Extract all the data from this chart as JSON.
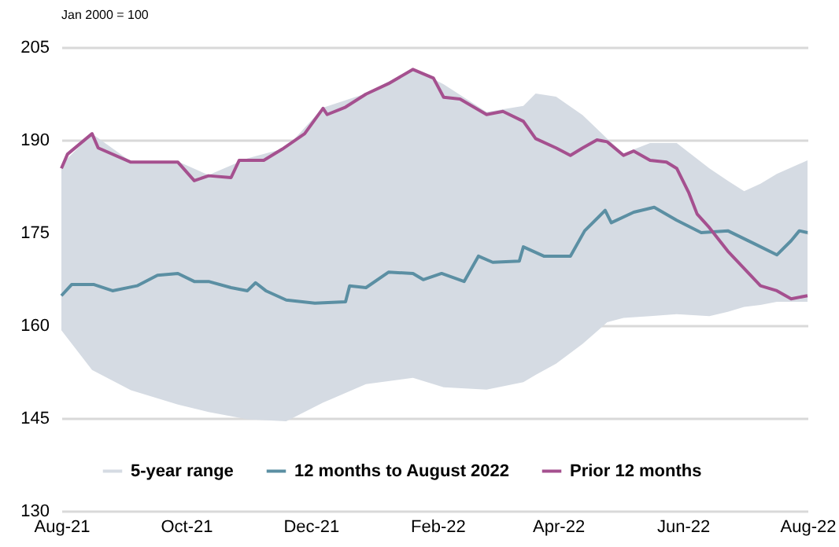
{
  "chart_data": {
    "type": "line",
    "annotations": [
      "Jan 2000 = 100"
    ],
    "xlim": [
      "2021-08-01",
      "2022-08-01"
    ],
    "xticks": [
      {
        "value": "2021-08-01",
        "label": "Aug-21"
      },
      {
        "value": "2021-10-01",
        "label": "Oct-21"
      },
      {
        "value": "2021-12-01",
        "label": "Dec-21"
      },
      {
        "value": "2022-02-01",
        "label": "Feb-22"
      },
      {
        "value": "2022-04-01",
        "label": "Apr-22"
      },
      {
        "value": "2022-06-01",
        "label": "Jun-22"
      },
      {
        "value": "2022-08-01",
        "label": "Aug-22"
      }
    ],
    "ylim": [
      130,
      205
    ],
    "yticks": [
      130,
      145,
      160,
      175,
      190,
      205
    ],
    "grid": "y",
    "legend": "bottom",
    "line_style": "solid",
    "series": [
      {
        "name": "5-year range",
        "type": "area",
        "color": "#d5dbe3",
        "x": [
          "2021-08-01",
          "2021-08-16",
          "2021-09-04",
          "2021-09-27",
          "2021-10-12",
          "2021-10-31",
          "2021-11-19",
          "2021-12-07",
          "2021-12-28",
          "2022-01-20",
          "2022-02-04",
          "2022-02-25",
          "2022-03-15",
          "2022-03-21",
          "2022-03-31",
          "2022-04-13",
          "2022-04-25",
          "2022-05-03",
          "2022-05-16",
          "2022-05-29",
          "2022-06-14",
          "2022-06-23",
          "2022-07-01",
          "2022-07-09",
          "2022-07-17",
          "2022-08-01"
        ],
        "values": [
          null,
          null,
          null,
          null,
          null,
          null,
          null,
          null,
          null,
          null,
          null,
          null,
          null,
          null,
          null,
          null,
          null,
          null,
          null,
          null,
          null,
          null,
          null,
          null,
          null,
          null
        ],
        "upper": [
          186,
          191,
          186.5,
          186.5,
          184.3,
          187,
          188.7,
          195.2,
          197.5,
          201.5,
          199,
          194.5,
          195.5,
          197.5,
          197,
          194,
          190.2,
          187.8,
          189.5,
          189.5,
          185.4,
          183.4,
          181.7,
          182.9,
          184.5,
          186.7
        ],
        "lower": [
          159.2,
          152.8,
          149.5,
          147.2,
          146,
          144.8,
          144.5,
          147.5,
          150.5,
          151.5,
          150,
          149.6,
          150.8,
          152,
          153.8,
          157,
          160.5,
          161.2,
          161.5,
          161.8,
          161.5,
          162.2,
          163,
          163.3,
          163.8,
          163.8
        ]
      },
      {
        "name": "12 months to August 2022",
        "color": "#5b8fa3",
        "x": [
          "2021-08-01",
          "2021-08-06",
          "2021-08-17",
          "2021-08-26",
          "2021-09-07",
          "2021-09-17",
          "2021-09-27",
          "2021-10-05",
          "2021-10-12",
          "2021-10-23",
          "2021-10-31",
          "2021-11-04",
          "2021-11-09",
          "2021-11-19",
          "2021-12-03",
          "2021-12-18",
          "2021-12-20",
          "2021-12-28",
          "2022-01-08",
          "2022-01-20",
          "2022-01-25",
          "2022-02-03",
          "2022-02-14",
          "2022-02-21",
          "2022-02-28",
          "2022-03-13",
          "2022-03-15",
          "2022-03-25",
          "2022-04-07",
          "2022-04-14",
          "2022-04-24",
          "2022-04-27",
          "2022-05-08",
          "2022-05-18",
          "2022-05-29",
          "2022-06-10",
          "2022-06-23",
          "2022-07-06",
          "2022-07-17",
          "2022-07-24",
          "2022-07-28",
          "2022-08-01"
        ],
        "values": [
          164.8,
          166.6,
          166.6,
          165.6,
          166.4,
          168.1,
          168.4,
          167.1,
          167.1,
          166.1,
          165.6,
          166.9,
          165.6,
          164.1,
          163.6,
          163.8,
          166.4,
          166.1,
          168.6,
          168.4,
          167.4,
          168.4,
          167.1,
          171.2,
          170.2,
          170.4,
          172.7,
          171.2,
          171.2,
          175.3,
          178.6,
          176.6,
          178.3,
          179.1,
          177,
          175,
          175.3,
          173.2,
          171.4,
          173.7,
          175.3,
          175
        ]
      },
      {
        "name": "Prior 12 months",
        "color": "#a5508f",
        "x": [
          "2021-08-01",
          "2021-08-04",
          "2021-08-16",
          "2021-08-19",
          "2021-09-04",
          "2021-09-27",
          "2021-10-05",
          "2021-10-12",
          "2021-10-23",
          "2021-10-27",
          "2021-11-08",
          "2021-11-17",
          "2021-11-28",
          "2021-12-07",
          "2021-12-09",
          "2021-12-18",
          "2021-12-28",
          "2022-01-08",
          "2022-01-20",
          "2022-01-30",
          "2022-02-04",
          "2022-02-12",
          "2022-02-25",
          "2022-03-05",
          "2022-03-15",
          "2022-03-21",
          "2022-03-31",
          "2022-04-07",
          "2022-04-13",
          "2022-04-20",
          "2022-04-25",
          "2022-05-03",
          "2022-05-08",
          "2022-05-16",
          "2022-05-24",
          "2022-05-29",
          "2022-06-04",
          "2022-06-08",
          "2022-06-14",
          "2022-06-23",
          "2022-07-09",
          "2022-07-17",
          "2022-07-24",
          "2022-08-01"
        ],
        "values": [
          185.4,
          187.7,
          191,
          188.7,
          186.4,
          186.4,
          183.4,
          184.2,
          183.9,
          186.7,
          186.7,
          188.5,
          191,
          195.1,
          194.1,
          195.3,
          197.4,
          199.1,
          201.4,
          200,
          196.9,
          196.6,
          194.1,
          194.6,
          193,
          190.2,
          188.7,
          187.5,
          188.7,
          190,
          189.7,
          187.5,
          188.2,
          186.7,
          186.4,
          185.4,
          181.4,
          178,
          175.8,
          172,
          166.4,
          165.6,
          164.3,
          164.8
        ]
      }
    ]
  }
}
